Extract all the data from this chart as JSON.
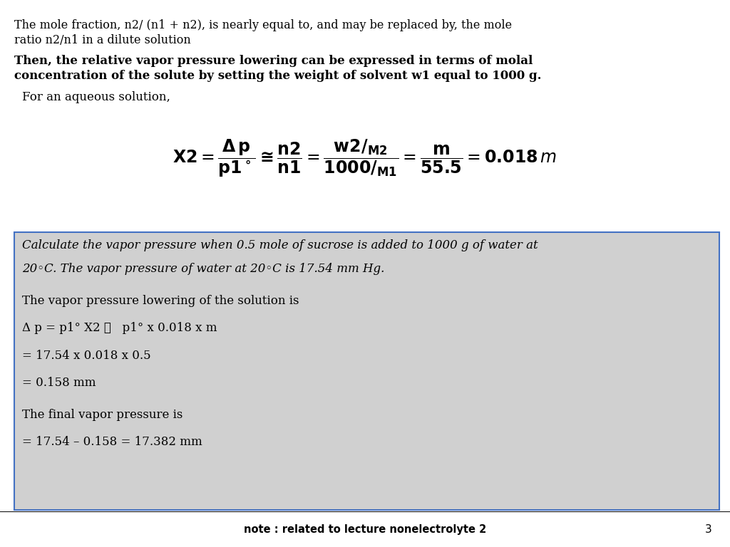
{
  "bg_color": "#ffffff",
  "box_bg": "#d0d0d0",
  "box_border": "#4472c4",
  "footer_text": "note : related to lecture nonelectrolyte 2",
  "page_num": "3",
  "line1": "The mole fraction, n2/ (n1 + n2), is nearly equal to, and may be replaced by, the mole",
  "line2": "ratio n2/n1 in a dilute solution",
  "bold_line1": "Then, the relative vapor pressure lowering can be expressed in terms of molal",
  "bold_line2": "concentration of the solute by setting the weight of solvent w1 equal to 1000 g.",
  "aqueous_line": "For an aqueous solution,",
  "box_italic_line1": "Calculate the vapor pressure when 0.5 mole of sucrose is added to 1000 g of water at",
  "box_italic_line2": "20◦C. The vapor pressure of water at 20◦C is 17.54 mm Hg.",
  "calc_line1": "The vapor pressure lowering of the solution is",
  "calc_line2": "Δ p = p1° X2 ≅   p1° x 0.018 x m",
  "calc_line3": "= 17.54 x 0.018 x 0.5",
  "calc_line4": "= 0.158 mm",
  "calc_line5": "The final vapor pressure is",
  "calc_line6": "= 17.54 – 0.158 = 17.382 mm"
}
